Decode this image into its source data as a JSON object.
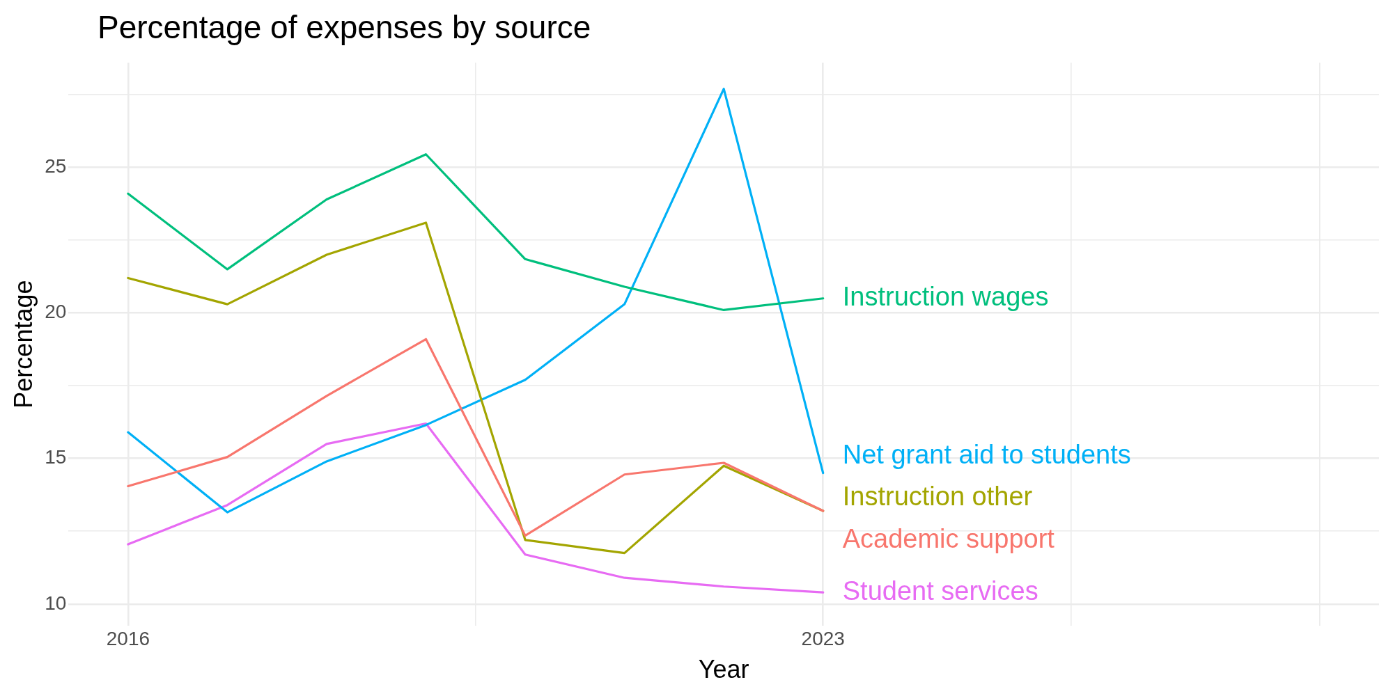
{
  "chart_data": {
    "type": "line",
    "title": "Percentage of expenses by source",
    "xlabel": "Year",
    "ylabel": "Percentage",
    "x": [
      2016,
      2017,
      2018,
      2019,
      2020,
      2021,
      2022,
      2023
    ],
    "series": [
      {
        "name": "Academic support",
        "color": "#f8766d",
        "values": [
          14.05,
          15.05,
          17.15,
          19.1,
          12.35,
          14.45,
          14.85,
          13.2
        ]
      },
      {
        "name": "Instruction other",
        "color": "#a3a500",
        "values": [
          21.2,
          20.3,
          22.0,
          23.1,
          12.2,
          11.75,
          14.75,
          13.2
        ]
      },
      {
        "name": "Instruction wages",
        "color": "#00bf7d",
        "values": [
          24.1,
          21.5,
          23.9,
          25.45,
          21.85,
          20.9,
          20.1,
          20.5
        ]
      },
      {
        "name": "Net grant aid to students",
        "color": "#00b0f6",
        "values": [
          15.9,
          13.15,
          14.9,
          16.15,
          17.7,
          20.3,
          27.7,
          14.5
        ]
      },
      {
        "name": "Student services",
        "color": "#e76bf3",
        "values": [
          12.05,
          13.4,
          15.5,
          16.2,
          11.7,
          10.9,
          10.6,
          10.4
        ]
      }
    ],
    "xlim": [
      2015.4,
      2028.6
    ],
    "xticks": [
      2016,
      {
        "value": 2019.5,
        "label": null
      },
      2023,
      {
        "value": 2025.5,
        "label": null
      },
      {
        "value": 2028,
        "label": null
      }
    ],
    "ylim": [
      9.25,
      28.6
    ],
    "yticks": [
      10,
      {
        "value": 12.5,
        "label": null
      },
      15,
      {
        "value": 17.5,
        "label": null
      },
      20,
      {
        "value": 22.5,
        "label": null
      },
      25,
      {
        "value": 27.5,
        "label": null
      }
    ],
    "grid": true,
    "legend": false,
    "marker": "none",
    "line_style": "solid"
  }
}
